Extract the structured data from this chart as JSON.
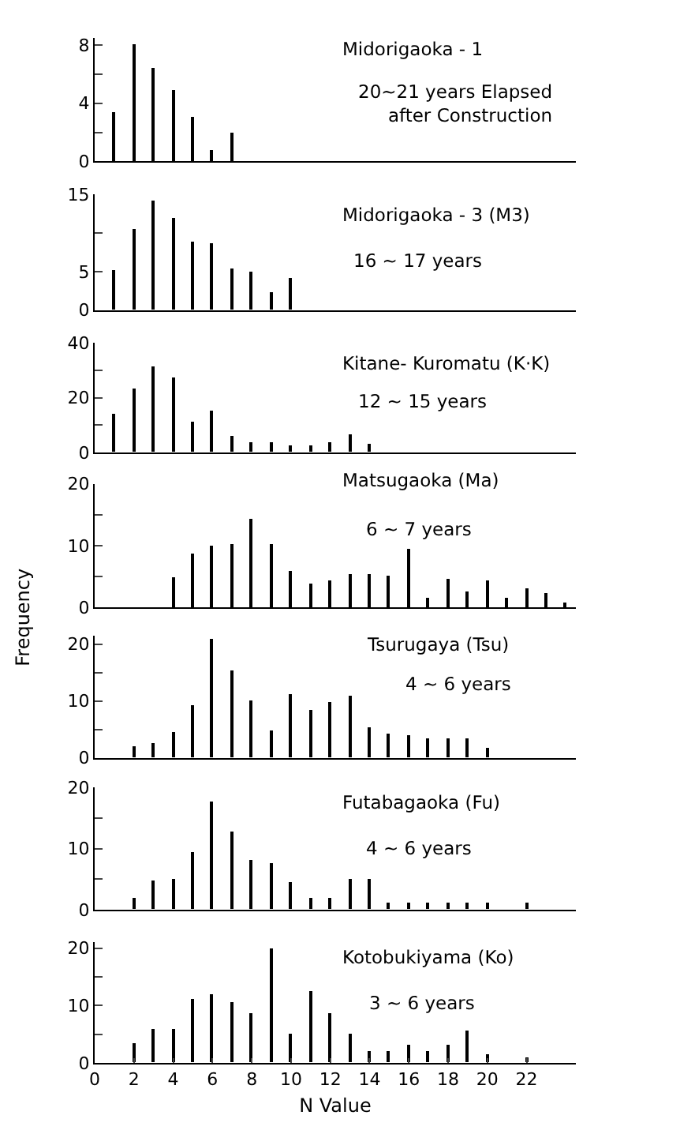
{
  "chart_data": [
    {
      "type": "bar",
      "title": "Midorigaoka - 1",
      "subtitle": "20~21 years Elapsed\nafter Construction",
      "x": [
        1,
        2,
        3,
        4,
        5,
        6,
        7
      ],
      "values": [
        3.4,
        8.1,
        6.4,
        4.9,
        3.1,
        0.8,
        2
      ],
      "color": "#000000",
      "xlim": [
        0,
        24.5
      ],
      "ylim": [
        0,
        8.5
      ],
      "yticks": [
        0,
        {
          "value": 2,
          "label": null
        },
        4,
        {
          "value": 6,
          "label": null
        },
        8
      ],
      "tick_labels": "y"
    },
    {
      "type": "bar",
      "title": "Midorigaoka - 3 (M3)",
      "subtitle": "16 ~ 17 years",
      "x": [
        1,
        2,
        3,
        4,
        5,
        6,
        7,
        8,
        9,
        10
      ],
      "values": [
        5.1,
        10.4,
        14.1,
        12,
        8.9,
        8.6,
        5.4,
        4.9,
        2.4,
        4.1
      ],
      "color": "#000000",
      "xlim": [
        0,
        24.5
      ],
      "ylim": [
        0,
        15
      ],
      "yticks": [
        0,
        5,
        {
          "value": 10,
          "label": null
        },
        15
      ],
      "tick_labels": "y"
    },
    {
      "type": "bar",
      "title": "Kitane- Kuromatu (K·K)",
      "subtitle": "12 ~ 15 years",
      "x": [
        1,
        2,
        3,
        4,
        5,
        6,
        7,
        8,
        9,
        10,
        11,
        12,
        13,
        14
      ],
      "values": [
        14.2,
        23.3,
        31.4,
        27.6,
        11.1,
        15.4,
        6,
        3.4,
        3.9,
        2.7,
        2.7,
        3.4,
        6.5,
        3.1
      ],
      "color": "#000000",
      "xlim": [
        0,
        24.5
      ],
      "ylim": [
        0,
        40
      ],
      "yticks": [
        0,
        {
          "value": 10,
          "label": null
        },
        20,
        {
          "value": 30,
          "label": null
        },
        40
      ],
      "tick_labels": "y"
    },
    {
      "type": "bar",
      "title": "Matsugaoka (Ma)",
      "subtitle": "6 ~ 7 years",
      "ylabel": "Frequency",
      "x": [
        4,
        5,
        6,
        7,
        8,
        9,
        10,
        11,
        12,
        13,
        14,
        15,
        16,
        17,
        18,
        19,
        20,
        21,
        22,
        23,
        24
      ],
      "values": [
        5,
        8.7,
        10,
        10.3,
        14.4,
        10.2,
        6,
        3.8,
        4.3,
        5.5,
        5.5,
        5.1,
        9.6,
        1.7,
        4.7,
        2.7,
        4.4,
        1.7,
        3.2,
        2.3,
        0.9
      ],
      "color": "#000000",
      "xlim": [
        0,
        24.5
      ],
      "ylim": [
        0,
        20
      ],
      "yticks": [
        0,
        {
          "value": 5,
          "label": null
        },
        10,
        {
          "value": 15,
          "label": null
        },
        20
      ],
      "tick_labels": "y"
    },
    {
      "type": "bar",
      "title": "Tsurugaya (Tsu)",
      "subtitle": "4 ~ 6 years",
      "x": [
        2,
        3,
        4,
        5,
        6,
        7,
        8,
        9,
        10,
        11,
        12,
        13,
        14,
        15,
        16,
        17,
        18,
        19,
        20
      ],
      "values": [
        2,
        2.5,
        4.6,
        9.3,
        21,
        15.5,
        10,
        4.9,
        11.3,
        8.5,
        9.7,
        10.8,
        5.5,
        4.2,
        4,
        3.5,
        3.5,
        3.3,
        1.8
      ],
      "color": "#000000",
      "xlim": [
        0,
        24.5
      ],
      "ylim": [
        0,
        21.5
      ],
      "yticks": [
        0,
        {
          "value": 5,
          "label": null
        },
        10,
        {
          "value": 15,
          "label": null
        },
        20
      ],
      "tick_labels": "y"
    },
    {
      "type": "bar",
      "title": "Futabagaoka (Fu)",
      "subtitle": "4 ~ 6 years",
      "x": [
        2,
        3,
        4,
        5,
        6,
        7,
        8,
        9,
        10,
        11,
        12,
        13,
        14,
        15,
        16,
        17,
        18,
        19,
        20,
        22
      ],
      "values": [
        2,
        4.7,
        5,
        9.3,
        17.7,
        12.7,
        8.2,
        7.6,
        4.5,
        2,
        1.8,
        4.9,
        4.9,
        1.2,
        1,
        1,
        1,
        1,
        1,
        1
      ],
      "color": "#000000",
      "xlim": [
        0,
        24.5
      ],
      "ylim": [
        0,
        20
      ],
      "yticks": [
        0,
        {
          "value": 5,
          "label": null
        },
        10,
        {
          "value": 15,
          "label": null
        },
        20
      ],
      "tick_labels": "y"
    },
    {
      "type": "bar",
      "title": "Kotobukiyama (Ko)",
      "subtitle": "3 ~ 6 years",
      "xlabel": "N Value",
      "x": [
        2,
        3,
        4,
        5,
        6,
        7,
        8,
        9,
        10,
        11,
        12,
        13,
        14,
        15,
        16,
        17,
        18,
        19,
        20,
        22
      ],
      "values": [
        3.5,
        6,
        6,
        11,
        12,
        10.5,
        8.5,
        20,
        5,
        12.5,
        8.5,
        5,
        2,
        2,
        3,
        2,
        3,
        5.5,
        1.5,
        1
      ],
      "color": "#000000",
      "xlim": [
        0,
        24.5
      ],
      "ylim": [
        0,
        21
      ],
      "xticks": [
        0,
        2,
        4,
        6,
        8,
        10,
        12,
        14,
        16,
        18,
        20,
        22
      ],
      "yticks": [
        0,
        {
          "value": 5,
          "label": null
        },
        10,
        {
          "value": 15,
          "label": null
        },
        20
      ]
    }
  ]
}
